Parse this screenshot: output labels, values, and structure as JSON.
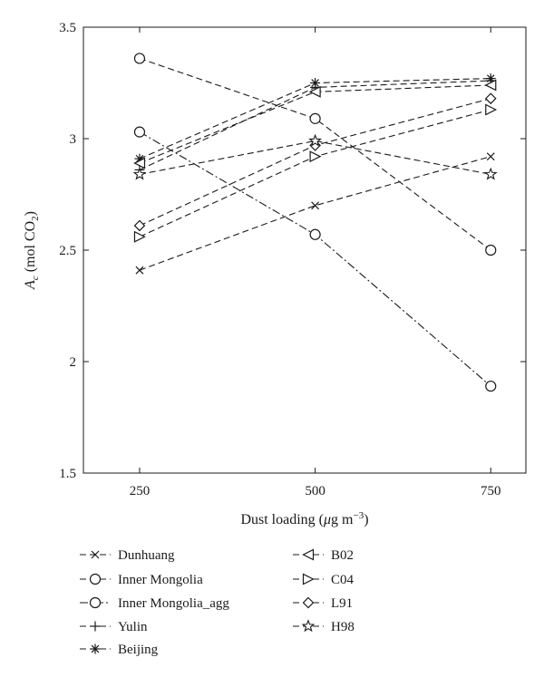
{
  "chart_data": {
    "type": "line",
    "x": [
      250,
      500,
      750
    ],
    "x_tick_labels": [
      "250",
      "500",
      "750"
    ],
    "y_tick_labels": [
      "1.5",
      "2",
      "2.5",
      "3",
      "3.5"
    ],
    "xlim": [
      170,
      800
    ],
    "ylim": [
      1.5,
      3.5
    ],
    "grid": false,
    "legend_position": "bottom",
    "xlabel": {
      "prefix": "Dust loading (",
      "mu": "μ",
      "unit": "g m",
      "exp": "−3",
      "suffix": ")"
    },
    "ylabel": {
      "prefix": "A",
      "sub": "c",
      "mid": " (mol CO",
      "sub2": "2",
      "suffix": ")"
    },
    "series": [
      {
        "name": "Dunhuang",
        "marker": "x",
        "dash": "dashed",
        "values": [
          2.41,
          2.7,
          2.92
        ]
      },
      {
        "name": "Inner Mongolia",
        "marker": "circle",
        "dash": "dashed",
        "values": [
          3.36,
          3.09,
          2.5
        ]
      },
      {
        "name": "Inner Mongolia_agg",
        "marker": "circle",
        "dash": "dashdot",
        "values": [
          3.03,
          2.57,
          1.89
        ]
      },
      {
        "name": "Yulin",
        "marker": "plus",
        "dash": "dashed",
        "values": [
          2.86,
          3.23,
          3.26
        ]
      },
      {
        "name": "Beijing",
        "marker": "asterisk",
        "dash": "dashed",
        "values": [
          2.91,
          3.25,
          3.27
        ]
      },
      {
        "name": "B02",
        "marker": "triangle-left",
        "dash": "dashed",
        "values": [
          2.89,
          3.21,
          3.24
        ]
      },
      {
        "name": "C04",
        "marker": "triangle-right",
        "dash": "dashed",
        "values": [
          2.56,
          2.92,
          3.13
        ]
      },
      {
        "name": "L91",
        "marker": "diamond",
        "dash": "dashed",
        "values": [
          2.61,
          2.97,
          3.18
        ]
      },
      {
        "name": "H98",
        "marker": "star",
        "dash": "dashed",
        "values": [
          2.84,
          2.99,
          2.84
        ]
      }
    ]
  }
}
